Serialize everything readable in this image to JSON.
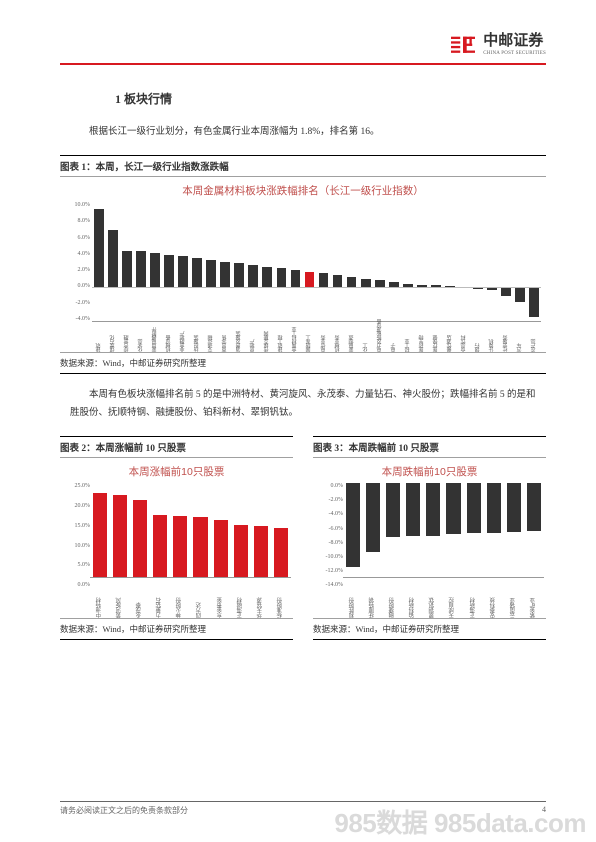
{
  "header": {
    "logo_cn": "中邮证券",
    "logo_en": "CHINA POST SECURITIES"
  },
  "section_num": "1",
  "section_title": "板块行情",
  "para1": "根据长江一级行业划分，有色金属行业本周涨幅为 1.8%，排名第 16。",
  "para2": "本周有色板块涨幅排名前 5 的是中洲特材、黄河旋风、永茂泰、力量钻石、神火股份；跌幅排名前 5 的是和胜股份、抚顺特钢、融捷股份、铂科新材、翠铜钒钛。",
  "chart1": {
    "caption": "图表 1：本周，长江一级行业指数涨跌幅",
    "title": "本周金属材料板块涨跌幅排名（长江一级行业指数）",
    "y_ticks": [
      "10.0%",
      "8.0%",
      "6.0%",
      "4.0%",
      "2.0%",
      "0.0%",
      "-2.0%",
      "-4.0%"
    ],
    "y_min": -4.0,
    "y_max": 10.0,
    "highlight_index": 15,
    "categories": [
      "建筑",
      "煤炭石化",
      "综合金融",
      "化学品",
      "家用电器附件",
      "机械设备",
      "非金融地产",
      "纺织服装",
      "交通运输",
      "商贸零售",
      "消费及服装",
      "房地产",
      "传媒互联网",
      "建筑工程",
      "金属材料工业",
      "国防军工",
      "电信业务",
      "机械业务",
      "家电制造",
      "化工",
      "电力及新能源设备",
      "电子",
      "轻工业",
      "医药生物",
      "医疗保健",
      "餐饮酒店",
      "食品饮料",
      "银行",
      "计算机",
      "社会服务",
      "汽车",
      "农产品"
    ],
    "values": [
      9.2,
      6.7,
      4.3,
      4.2,
      4.0,
      3.8,
      3.6,
      3.4,
      3.2,
      3.0,
      2.8,
      2.6,
      2.4,
      2.2,
      2.0,
      1.8,
      1.6,
      1.4,
      1.2,
      1.0,
      0.8,
      0.6,
      0.4,
      0.3,
      0.2,
      0.1,
      0.0,
      -0.2,
      -0.4,
      -1.0,
      -1.8,
      -3.5
    ],
    "source": "数据来源：Wind，中邮证券研究所整理"
  },
  "chart2": {
    "caption": "图表 2：本周涨幅前 10 只股票",
    "title": "本周涨幅前10只股票",
    "y_ticks": [
      "25.0%",
      "20.0%",
      "15.0%",
      "10.0%",
      "5.0%",
      "0.0%"
    ],
    "y_min": 0,
    "y_max": 25.0,
    "categories": [
      "中洲特材",
      "黄河旋风",
      "永茂泰",
      "力量钻石",
      "神火股份",
      "四方达",
      "东金贵金",
      "正海磁材",
      "华天铭源",
      "标准股份"
    ],
    "values": [
      22.5,
      21.8,
      20.5,
      16.5,
      16.2,
      16.0,
      15.2,
      14.0,
      13.5,
      13.0
    ],
    "source": "数据来源：Wind，中邮证券研究所整理",
    "bar_color": "#d71920"
  },
  "chart3": {
    "caption": "图表 3：本周跌幅前 10 只股票",
    "title": "本周跌幅前10只股票",
    "y_ticks": [
      "0.0%",
      "-2.0%",
      "-4.0%",
      "-6.0%",
      "-8.0%",
      "-10.0%",
      "-12.0%",
      "-14.0%"
    ],
    "y_min": -14.0,
    "y_max": 0,
    "categories": [
      "和胜股份",
      "抚顺特钢",
      "融捷股份",
      "铂科新材",
      "翠铜钒钛",
      "天成自控",
      "正海新材",
      "安泰科技",
      "云南锗业",
      "紫金矿业"
    ],
    "values": [
      -12.5,
      -10.2,
      -8.0,
      -7.9,
      -7.8,
      -7.6,
      -7.5,
      -7.4,
      -7.3,
      -7.2
    ],
    "source": "数据来源：Wind，中邮证券研究所整理",
    "bar_color": "#333333"
  },
  "footer": {
    "left": "请务必阅读正文之后的免责条款部分",
    "page": "4"
  },
  "watermark": "985数据 985data.com"
}
